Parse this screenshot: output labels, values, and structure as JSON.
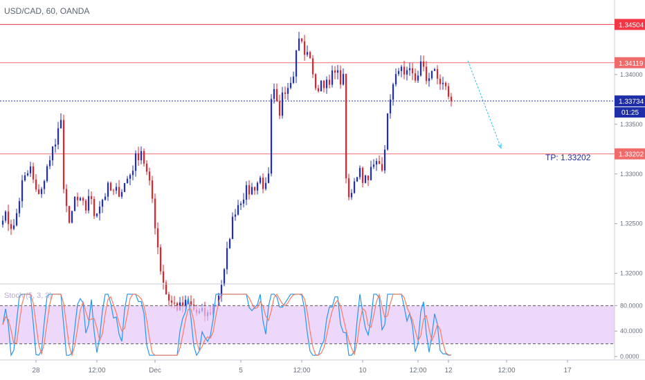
{
  "chart_data": {
    "type": "candlestick",
    "title": "USD/CAD, 60, OANDA",
    "price_axis": {
      "range": [
        1.319,
        1.3475
      ],
      "ticks": [
        {
          "value": 1.34,
          "label": "1.34000"
        },
        {
          "value": 1.335,
          "label": "1.33500"
        },
        {
          "value": 1.33,
          "label": "1.33000"
        },
        {
          "value": 1.325,
          "label": "1.32500"
        },
        {
          "value": 1.32,
          "label": "1.32000"
        }
      ]
    },
    "levels": [
      {
        "value": 1.34504,
        "label": "1.34504",
        "color": "#f23645",
        "style": "solid"
      },
      {
        "value": 1.34119,
        "label": "1.34119",
        "color": "#f06a6a",
        "style": "solid"
      },
      {
        "value": 1.33734,
        "label": "1.33734",
        "color": "#1e2ea8",
        "style": "dotted"
      },
      {
        "value": 1.33202,
        "label": "1.33202",
        "color": "#f06a6a",
        "style": "solid"
      }
    ],
    "countdown": "01:25",
    "annotation": {
      "text": "TP: 1.33202",
      "color": "#1e2ea8"
    },
    "projection": {
      "from_bar": 168,
      "from_price": 1.3414,
      "to_bar": 180,
      "to_price": 1.3326,
      "color": "#35c1e6"
    },
    "candle_colors": {
      "up": "#1c2bd8",
      "down": "#e8202a"
    },
    "x_axis": {
      "bar_range": [
        -1,
        221
      ],
      "ticks": [
        {
          "bar": 12,
          "label": "28"
        },
        {
          "bar": 34,
          "label": "12:00"
        },
        {
          "bar": 55,
          "label": "Dec"
        },
        {
          "bar": 86,
          "label": "5"
        },
        {
          "bar": 108,
          "label": "12:00"
        },
        {
          "bar": 130,
          "label": "10"
        },
        {
          "bar": 150,
          "label": "12:00"
        },
        {
          "bar": 161,
          "label": "12"
        },
        {
          "bar": 182,
          "label": "12:00"
        },
        {
          "bar": 204,
          "label": "17"
        }
      ]
    },
    "anchors": [
      [
        0,
        1.326
      ],
      [
        4,
        1.3245
      ],
      [
        7,
        1.329
      ],
      [
        10,
        1.3305
      ],
      [
        12,
        1.328
      ],
      [
        15,
        1.329
      ],
      [
        17,
        1.332
      ],
      [
        19,
        1.333
      ],
      [
        21,
        1.335
      ],
      [
        22,
        1.329
      ],
      [
        24,
        1.3245
      ],
      [
        26,
        1.3275
      ],
      [
        28,
        1.327
      ],
      [
        30,
        1.3265
      ],
      [
        31,
        1.328
      ],
      [
        33,
        1.326
      ],
      [
        36,
        1.3275
      ],
      [
        38,
        1.3285
      ],
      [
        40,
        1.328
      ],
      [
        43,
        1.3285
      ],
      [
        46,
        1.33
      ],
      [
        48,
        1.3315
      ],
      [
        50,
        1.3325
      ],
      [
        52,
        1.33
      ],
      [
        54,
        1.3275
      ],
      [
        55,
        1.325
      ],
      [
        57,
        1.3205
      ],
      [
        59,
        1.318
      ],
      [
        61,
        1.317
      ],
      [
        64,
        1.3165
      ],
      [
        67,
        1.317
      ],
      [
        70,
        1.316
      ],
      [
        74,
        1.3158
      ],
      [
        77,
        1.317
      ],
      [
        80,
        1.32
      ],
      [
        82,
        1.324
      ],
      [
        84,
        1.3265
      ],
      [
        87,
        1.328
      ],
      [
        90,
        1.3285
      ],
      [
        93,
        1.3295
      ],
      [
        95,
        1.3285
      ],
      [
        96,
        1.3295
      ],
      [
        97,
        1.337
      ],
      [
        98,
        1.338
      ],
      [
        100,
        1.3355
      ],
      [
        101,
        1.3385
      ],
      [
        103,
        1.339
      ],
      [
        105,
        1.3405
      ],
      [
        107,
        1.344
      ],
      [
        109,
        1.342
      ],
      [
        111,
        1.342
      ],
      [
        112,
        1.3395
      ],
      [
        114,
        1.3385
      ],
      [
        117,
        1.3395
      ],
      [
        120,
        1.34
      ],
      [
        123,
        1.3395
      ],
      [
        124,
        1.33
      ],
      [
        125,
        1.327
      ],
      [
        127,
        1.329
      ],
      [
        129,
        1.331
      ],
      [
        130,
        1.3295
      ],
      [
        132,
        1.33
      ],
      [
        135,
        1.331
      ],
      [
        137,
        1.331
      ],
      [
        138,
        1.333
      ],
      [
        140,
        1.338
      ],
      [
        142,
        1.3395
      ],
      [
        143,
        1.341
      ],
      [
        145,
        1.3395
      ],
      [
        147,
        1.34
      ],
      [
        149,
        1.3395
      ],
      [
        151,
        1.341
      ],
      [
        153,
        1.3395
      ],
      [
        155,
        1.3405
      ],
      [
        157,
        1.3395
      ],
      [
        159,
        1.339
      ],
      [
        161,
        1.338
      ],
      [
        162,
        1.3373
      ]
    ],
    "stochastic": {
      "label": "Stoch (5, 3, 3)",
      "range": [
        0,
        100
      ],
      "ticks": [
        {
          "value": 80,
          "label": "80.0000"
        },
        {
          "value": 40,
          "label": "40.0000"
        },
        {
          "value": 0,
          "label": "0.0000"
        }
      ],
      "band": [
        20,
        80
      ],
      "k_color": "#2196f3",
      "d_color": "#f57c60",
      "band_color": "#e6c8fa"
    }
  }
}
